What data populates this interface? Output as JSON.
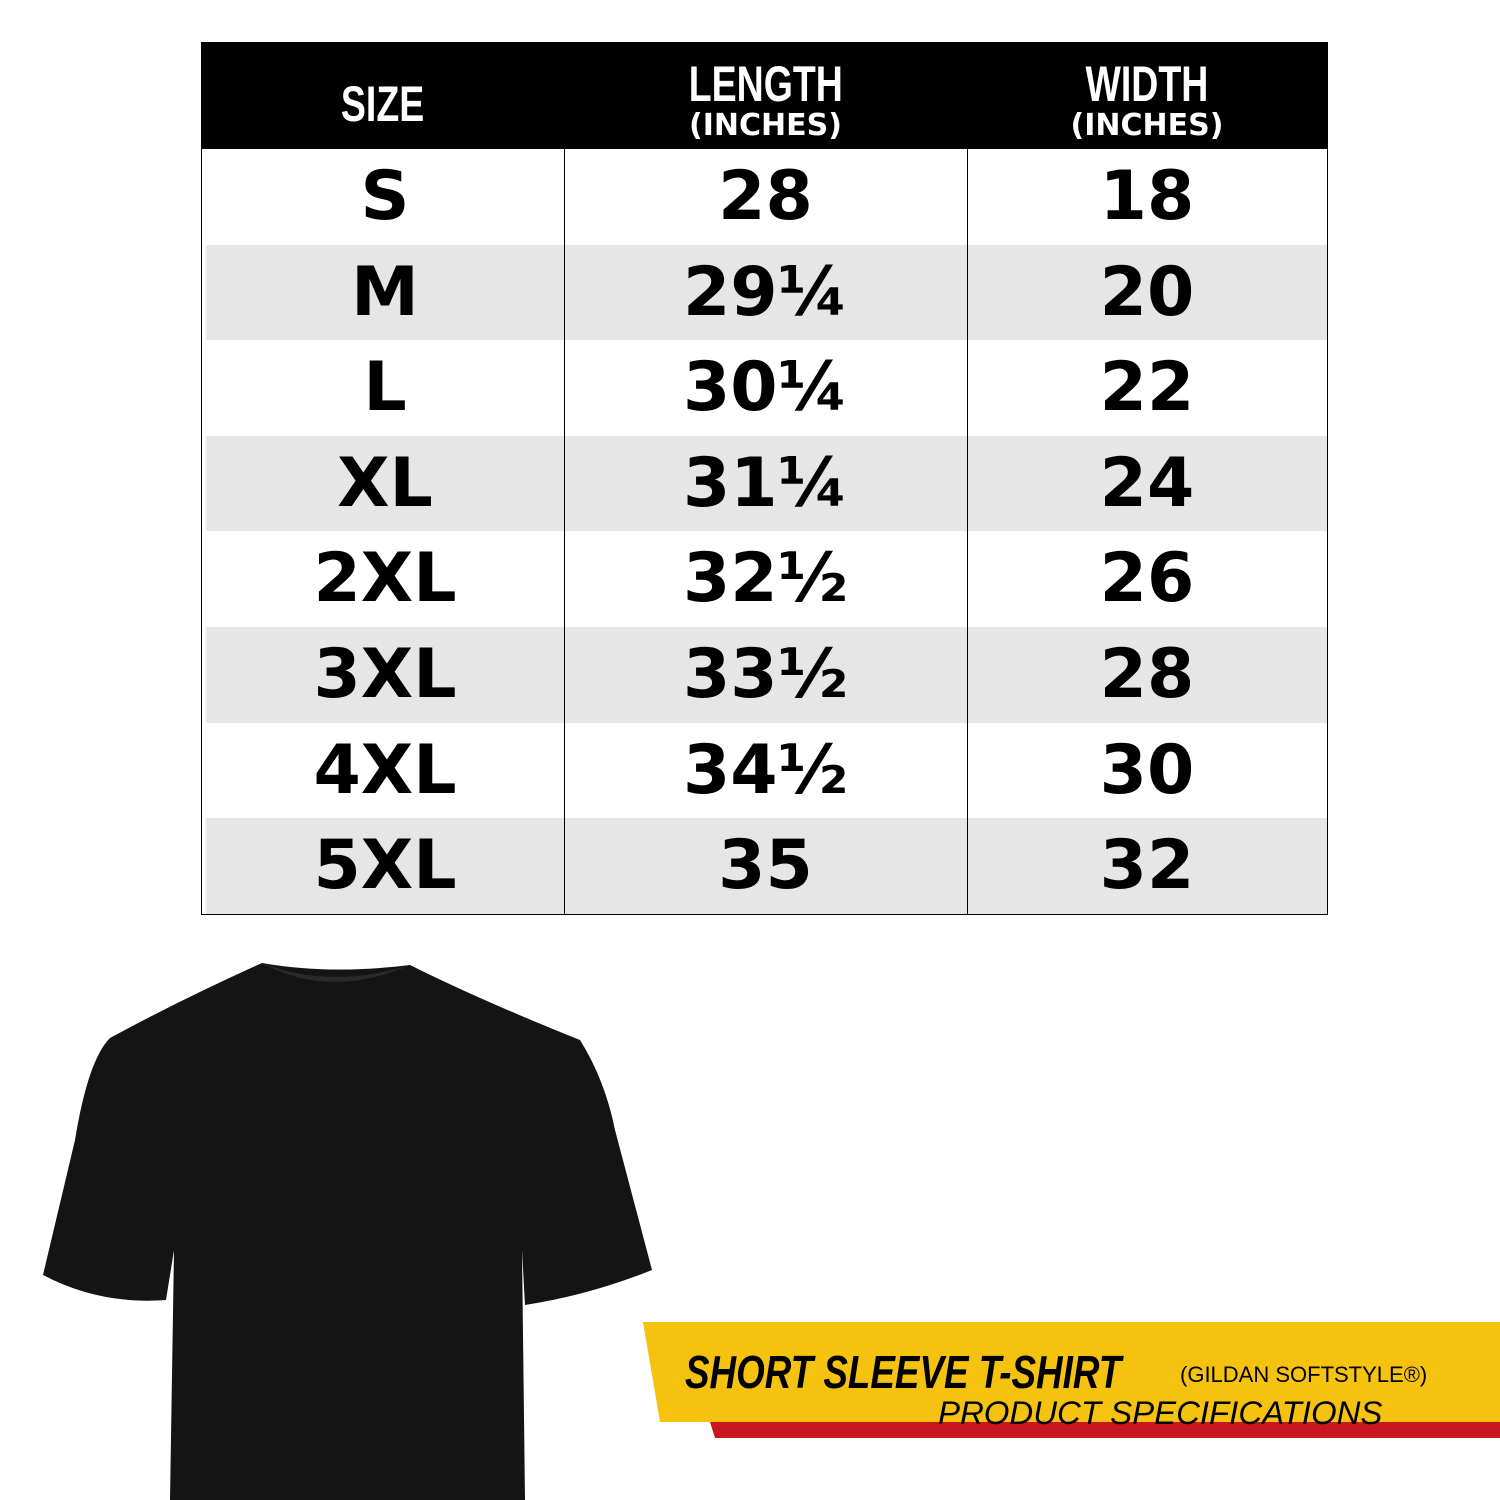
{
  "table": {
    "header": [
      {
        "title": "SIZE"
      },
      {
        "title": "LENGTH",
        "unit": "(INCHES)"
      },
      {
        "title": "WIDTH",
        "unit": "(INCHES)"
      }
    ],
    "rows": [
      [
        "S",
        "28",
        "18"
      ],
      [
        "M",
        "29¼",
        "20"
      ],
      [
        "L",
        "30¼",
        "22"
      ],
      [
        "XL",
        "31¼",
        "24"
      ],
      [
        "2XL",
        "32½",
        "26"
      ],
      [
        "3XL",
        "33½",
        "28"
      ],
      [
        "4XL",
        "34½",
        "30"
      ],
      [
        "5XL",
        "35",
        "32"
      ]
    ]
  },
  "banner": {
    "title": "SHORT SLEEVE T-SHIRT",
    "brand": "(GILDAN SOFTSTYLE®)",
    "subtitle": "PRODUCT SPECIFICATIONS"
  }
}
